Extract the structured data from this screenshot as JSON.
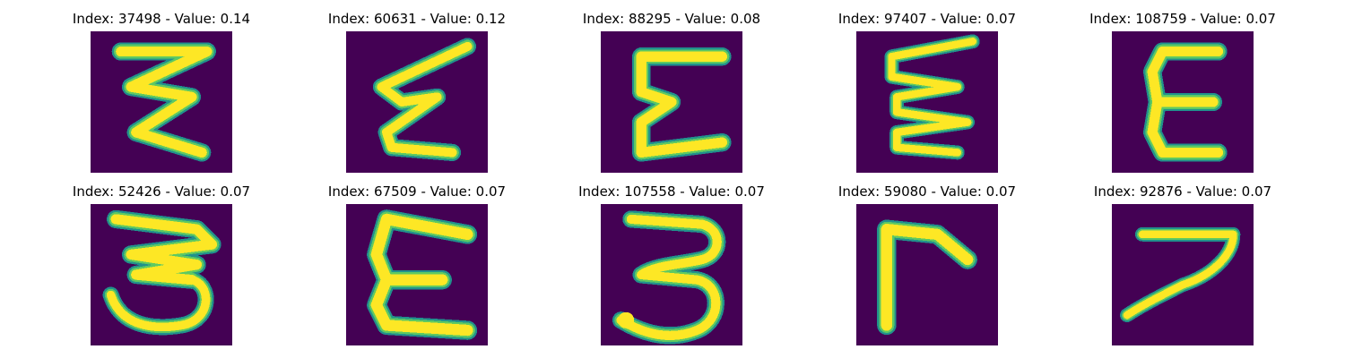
{
  "colors": {
    "background": "#440154",
    "stroke_edge": "#21918c",
    "stroke_mid": "#5ec962",
    "stroke_core": "#fde725"
  },
  "panels": [
    {
      "title": "Index: 37498 - Value: 0.14",
      "glyph": "zigzag-three-stroke"
    },
    {
      "title": "Index: 60631 - Value: 0.12",
      "glyph": "slanted-zigzag"
    },
    {
      "title": "Index: 88295 - Value: 0.08",
      "glyph": "epsilon-e"
    },
    {
      "title": "Index: 97407 - Value: 0.07",
      "glyph": "thin-zigzag"
    },
    {
      "title": "Index: 108759 - Value: 0.07",
      "glyph": "letter-e"
    },
    {
      "title": "Index: 52426 - Value: 0.07",
      "glyph": "digit-3-zigzag"
    },
    {
      "title": "Index: 67509 - Value: 0.07",
      "glyph": "letter-e-wide"
    },
    {
      "title": "Index: 107558 - Value: 0.07",
      "glyph": "digit-3"
    },
    {
      "title": "Index: 59080 - Value: 0.07",
      "glyph": "corner-gamma"
    },
    {
      "title": "Index: 92876 - Value: 0.07",
      "glyph": "digit-7"
    }
  ]
}
